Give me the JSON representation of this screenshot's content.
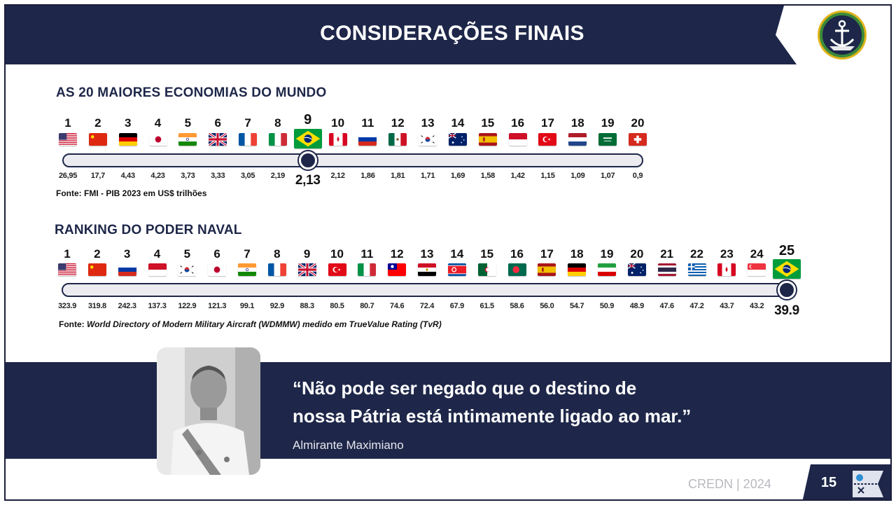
{
  "header": {
    "title": "CONSIDERAÇÕES FINAIS"
  },
  "economies": {
    "title": "AS 20 MAIORES ECONOMIAS DO MUNDO",
    "highlight_rank": 9,
    "source": "Fonte: FMI - PIB 2023 em US$ trilhões",
    "items": [
      {
        "rank": "1",
        "flag": "us-flag",
        "value": "26,95"
      },
      {
        "rank": "2",
        "flag": "cn-flag",
        "value": "17,7"
      },
      {
        "rank": "3",
        "flag": "de-flag",
        "value": "4,43"
      },
      {
        "rank": "4",
        "flag": "jp-flag",
        "value": "4,23"
      },
      {
        "rank": "5",
        "flag": "in-flag",
        "value": "3,73"
      },
      {
        "rank": "6",
        "flag": "gb-flag",
        "value": "3,33"
      },
      {
        "rank": "7",
        "flag": "fr-flag",
        "value": "3,05"
      },
      {
        "rank": "8",
        "flag": "it-flag",
        "value": "2,19"
      },
      {
        "rank": "9",
        "flag": "br-flag",
        "value": "2,13"
      },
      {
        "rank": "10",
        "flag": "ca-flag",
        "value": "2,12"
      },
      {
        "rank": "11",
        "flag": "ru-flag",
        "value": "1,86"
      },
      {
        "rank": "12",
        "flag": "mx-flag",
        "value": "1,81"
      },
      {
        "rank": "13",
        "flag": "kr-flag",
        "value": "1,71"
      },
      {
        "rank": "14",
        "flag": "au-flag",
        "value": "1,69"
      },
      {
        "rank": "15",
        "flag": "es-flag",
        "value": "1,58"
      },
      {
        "rank": "16",
        "flag": "id-flag",
        "value": "1,42"
      },
      {
        "rank": "17",
        "flag": "tr-flag",
        "value": "1,15"
      },
      {
        "rank": "18",
        "flag": "nl-flag",
        "value": "1,09"
      },
      {
        "rank": "19",
        "flag": "sa-flag",
        "value": "1,07"
      },
      {
        "rank": "20",
        "flag": "ch-flag",
        "value": "0,9"
      }
    ]
  },
  "naval": {
    "title": "RANKING DO PODER NAVAL",
    "highlight_rank": 25,
    "source_prefix": "Fonte: ",
    "source_italic": "World Directory of Modern Military Aircraft (WDMMW) medido em TrueValue Rating (TvR)",
    "items": [
      {
        "rank": "1",
        "flag": "us-flag",
        "value": "323.9"
      },
      {
        "rank": "2",
        "flag": "cn-flag",
        "value": "319.8"
      },
      {
        "rank": "3",
        "flag": "ru-flag",
        "value": "242.3"
      },
      {
        "rank": "4",
        "flag": "id-flag",
        "value": "137.3"
      },
      {
        "rank": "5",
        "flag": "kr-flag",
        "value": "122.9"
      },
      {
        "rank": "6",
        "flag": "jp-flag",
        "value": "121.3"
      },
      {
        "rank": "7",
        "flag": "in-flag",
        "value": "99.1"
      },
      {
        "rank": "8",
        "flag": "fr-flag",
        "value": "92.9"
      },
      {
        "rank": "9",
        "flag": "gb-flag",
        "value": "88.3"
      },
      {
        "rank": "10",
        "flag": "tr-flag",
        "value": "80.5"
      },
      {
        "rank": "11",
        "flag": "it-flag",
        "value": "80.7"
      },
      {
        "rank": "12",
        "flag": "tw-flag",
        "value": "74.6"
      },
      {
        "rank": "13",
        "flag": "eg-flag",
        "value": "72.4"
      },
      {
        "rank": "14",
        "flag": "kp-flag",
        "value": "67.9"
      },
      {
        "rank": "15",
        "flag": "dz-flag",
        "value": "61.5"
      },
      {
        "rank": "16",
        "flag": "bd-flag",
        "value": "58.6"
      },
      {
        "rank": "17",
        "flag": "es-flag",
        "value": "56.0"
      },
      {
        "rank": "18",
        "flag": "de-flag",
        "value": "54.7"
      },
      {
        "rank": "19",
        "flag": "ir-flag",
        "value": "50.9"
      },
      {
        "rank": "20",
        "flag": "au-flag",
        "value": "48.9"
      },
      {
        "rank": "21",
        "flag": "th-flag",
        "value": "47.6"
      },
      {
        "rank": "22",
        "flag": "gr-flag",
        "value": "47.2"
      },
      {
        "rank": "23",
        "flag": "ca-flag",
        "value": "43.7"
      },
      {
        "rank": "24",
        "flag": "sg-flag",
        "value": "43.2"
      },
      {
        "rank": "25",
        "flag": "br-flag",
        "value": "39.9"
      }
    ]
  },
  "quote": {
    "line1": "“Não pode ser negado que o destino de",
    "line2": "nossa Pátria está intimamente ligado ao mar.”",
    "author": "Almirante Maximiano"
  },
  "footer": {
    "org": "CREDN | 2024",
    "page": "15"
  },
  "colors": {
    "navy": "#1e2749",
    "band": "#1e2749"
  }
}
